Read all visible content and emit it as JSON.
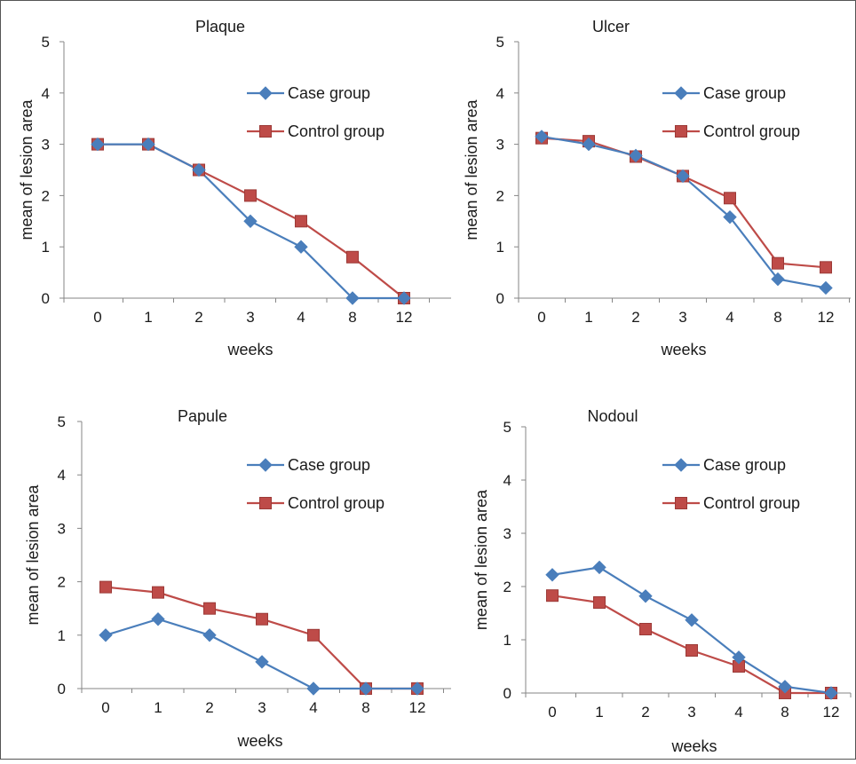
{
  "colors": {
    "case": "#4a7ebb",
    "control": "#be4b48",
    "axis": "#868686",
    "border": "#555555"
  },
  "icons": {
    "case_marker": "diamond-icon",
    "control_marker": "square-icon"
  },
  "chart_data": [
    {
      "type": "line",
      "title": "Plaque",
      "xlabel": "weeks",
      "ylabel": "mean of lesion area",
      "categories": [
        "0",
        "1",
        "2",
        "3",
        "4",
        "8",
        "12"
      ],
      "yticks": [
        "0",
        "1",
        "2",
        "3",
        "4",
        "5"
      ],
      "ylim": [
        0,
        5
      ],
      "grid": false,
      "legend": "top-right",
      "series": [
        {
          "name": "Case group",
          "values": [
            3,
            3,
            2.5,
            1.5,
            1,
            0,
            0
          ]
        },
        {
          "name": "Control group",
          "values": [
            3,
            3,
            2.5,
            2,
            1.5,
            0.8,
            0
          ]
        }
      ]
    },
    {
      "type": "line",
      "title": "Ulcer",
      "xlabel": "weeks",
      "ylabel": "mean of lesion area",
      "categories": [
        "0",
        "1",
        "2",
        "3",
        "4",
        "8",
        "12"
      ],
      "yticks": [
        "0",
        "1",
        "2",
        "3",
        "4",
        "5"
      ],
      "ylim": [
        0,
        5
      ],
      "grid": false,
      "legend": "top-right",
      "series": [
        {
          "name": "Case group",
          "values": [
            3.15,
            3.0,
            2.78,
            2.38,
            1.58,
            0.37,
            0.2
          ]
        },
        {
          "name": "Control group",
          "values": [
            3.12,
            3.06,
            2.76,
            2.38,
            1.95,
            0.68,
            0.6
          ]
        }
      ]
    },
    {
      "type": "line",
      "title": "Papule",
      "xlabel": "weeks",
      "ylabel": "mean of lesion area",
      "categories": [
        "0",
        "1",
        "2",
        "3",
        "4",
        "8",
        "12"
      ],
      "yticks": [
        "0",
        "1",
        "2",
        "3",
        "4",
        "5"
      ],
      "ylim": [
        0,
        5
      ],
      "grid": false,
      "legend": "top-right",
      "series": [
        {
          "name": "Case group",
          "values": [
            1,
            1.3,
            1,
            0.5,
            0,
            0,
            0
          ]
        },
        {
          "name": "Control group",
          "values": [
            1.9,
            1.8,
            1.5,
            1.3,
            1,
            0,
            0
          ]
        }
      ]
    },
    {
      "type": "line",
      "title": "Nodoul",
      "xlabel": "weeks",
      "ylabel": "mean of lesion area",
      "categories": [
        "0",
        "1",
        "2",
        "3",
        "4",
        "8",
        "12"
      ],
      "yticks": [
        "0",
        "1",
        "2",
        "3",
        "4",
        "5"
      ],
      "ylim": [
        0,
        5
      ],
      "grid": false,
      "legend": "top-right",
      "series": [
        {
          "name": "Case group",
          "values": [
            2.22,
            2.36,
            1.82,
            1.37,
            0.67,
            0.12,
            0
          ]
        },
        {
          "name": "Control group",
          "values": [
            1.83,
            1.7,
            1.2,
            0.8,
            0.5,
            0,
            0
          ]
        }
      ]
    }
  ]
}
